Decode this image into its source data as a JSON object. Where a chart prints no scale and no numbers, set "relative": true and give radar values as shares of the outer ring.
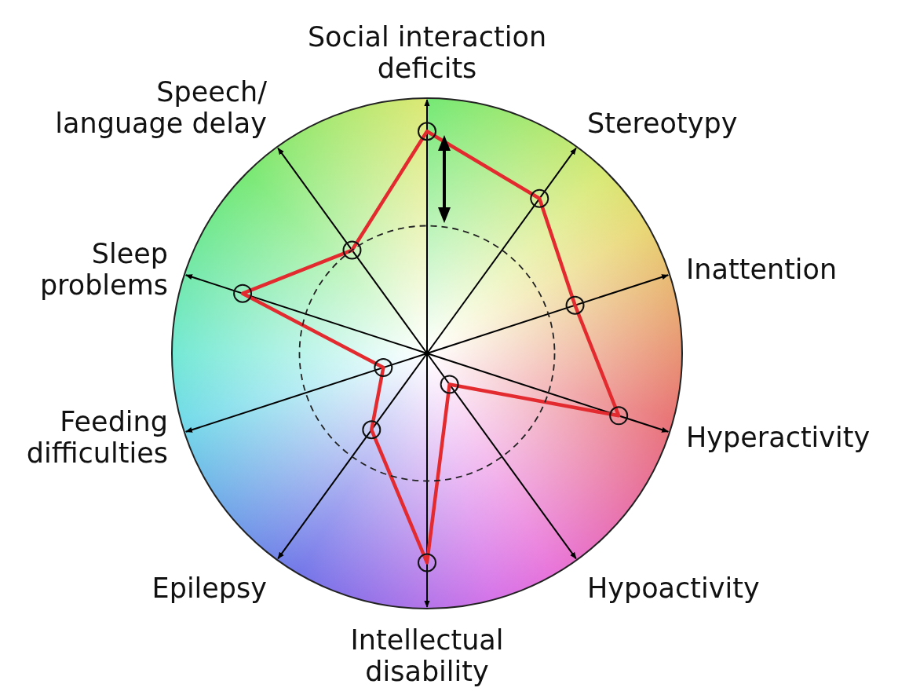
{
  "chart_data": {
    "type": "radar",
    "relative": true,
    "categories": [
      "Social interaction\ndeficits",
      "Stereotypy",
      "Inattention",
      "Hyperactivity",
      "Hypoactivity",
      "Intellectual\ndisability",
      "Epilepsy",
      "Feeding\ndifficulties",
      "Sleep\nproblems",
      "Speech/\nlanguage delay"
    ],
    "series": [
      {
        "color": "#e32b2f",
        "values": [
          0.87,
          0.75,
          0.61,
          0.79,
          0.15,
          0.82,
          0.37,
          0.18,
          0.76,
          0.5
        ]
      }
    ],
    "marker": "circle"
  }
}
